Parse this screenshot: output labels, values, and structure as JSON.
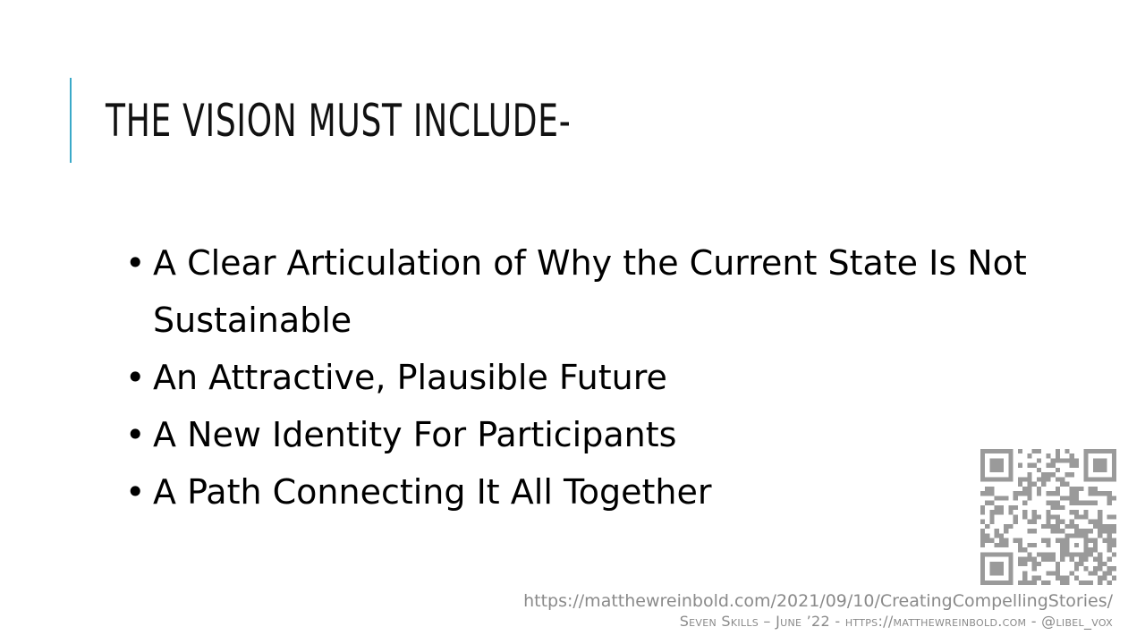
{
  "slide": {
    "title": "THE VISION MUST INCLUDE-",
    "accent_color": "#3aa9c8",
    "bullets": [
      "A Clear Articulation of Why the Current State Is Not Sustainable",
      "An Attractive, Plausible Future",
      "A New Identity For Participants",
      "A Path Connecting It All Together"
    ],
    "bullet_glyph": "•"
  },
  "footer": {
    "url": "https://matthewreinbold.com/2021/09/10/CreatingCompellingStories/",
    "credit": "Seven Skills – June ’22 - https://matthewreinbold.com - @libel_vox"
  },
  "qr_code": {
    "icon": "qr-code-icon",
    "color": "#9a9a9a"
  }
}
